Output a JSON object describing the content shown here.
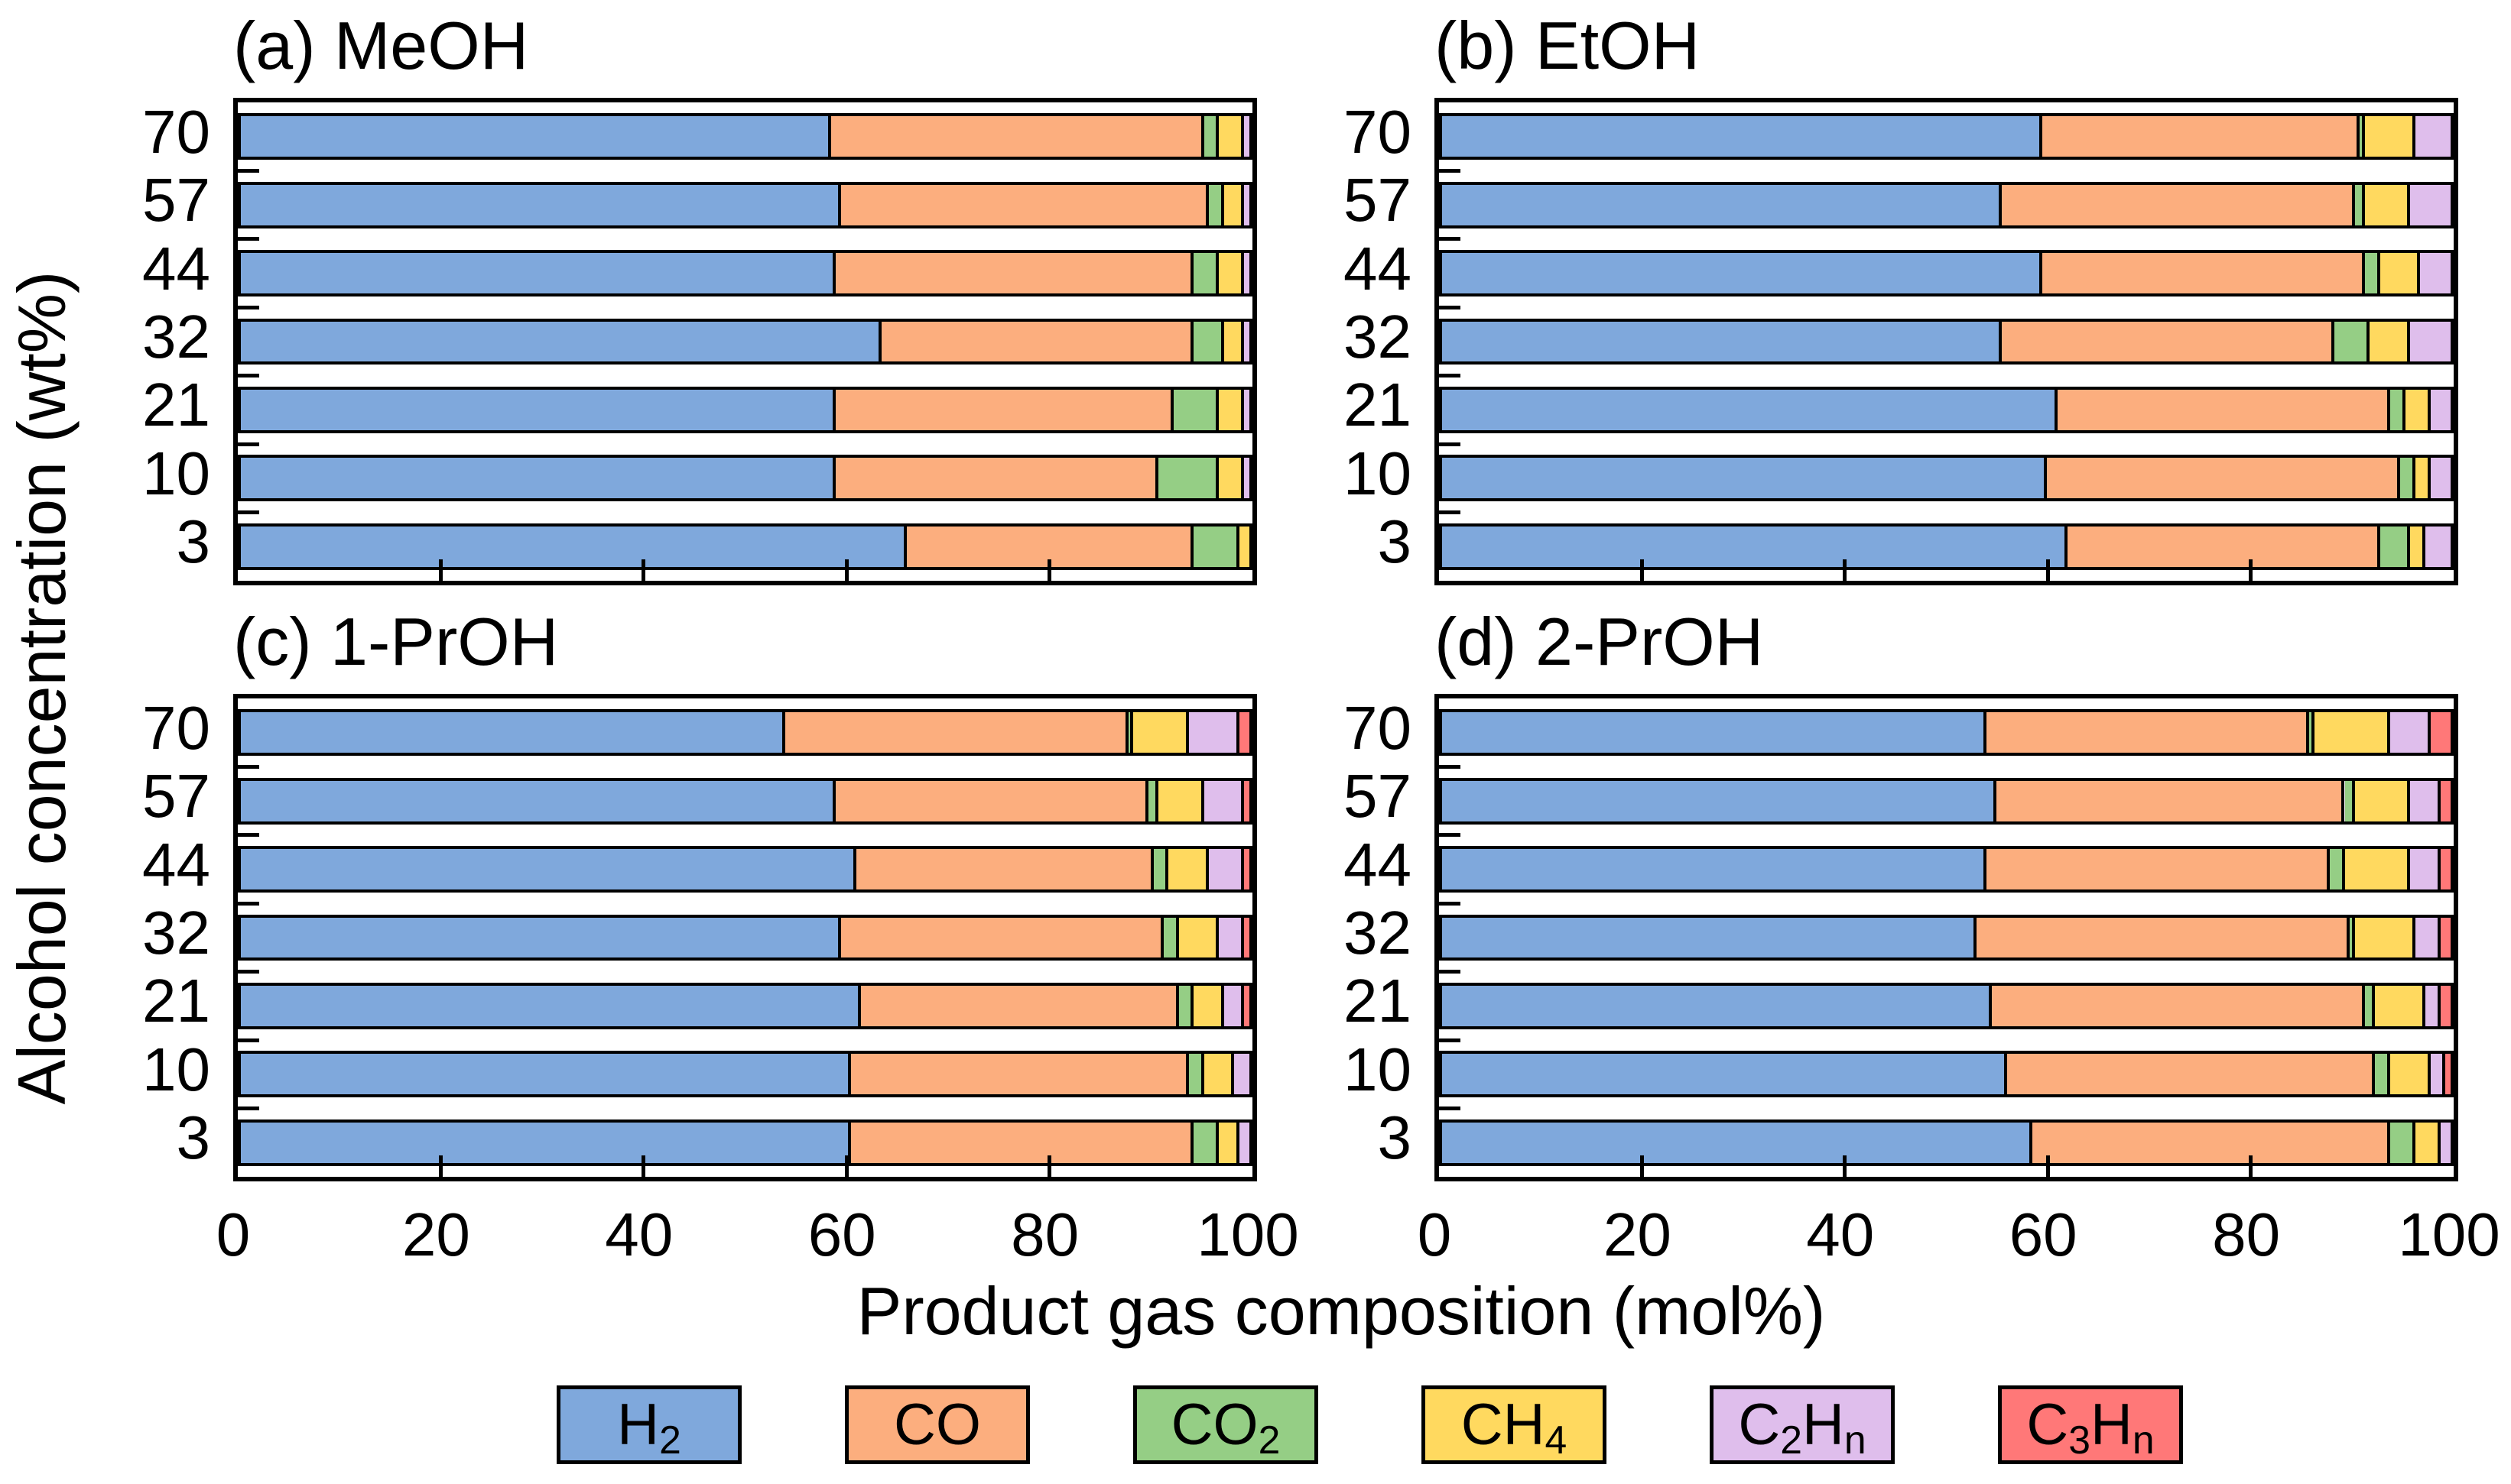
{
  "figure": {
    "ylabel": "Alcohol concentration (wt%)",
    "xlabel": "Product gas composition (mol%)",
    "background_color": "#ffffff",
    "frame_color": "#000000",
    "species": [
      {
        "name": "H2",
        "color": "#7FA8DC",
        "label_parts": [
          {
            "t": "H"
          },
          {
            "t": "2",
            "sub": true
          }
        ]
      },
      {
        "name": "CO",
        "color": "#FCAE7E",
        "label_parts": [
          {
            "t": "CO"
          }
        ]
      },
      {
        "name": "CO2",
        "color": "#95CE85",
        "label_parts": [
          {
            "t": "CO"
          },
          {
            "t": "2",
            "sub": true
          }
        ]
      },
      {
        "name": "CH4",
        "color": "#FFD95F",
        "label_parts": [
          {
            "t": "CH"
          },
          {
            "t": "4",
            "sub": true
          }
        ]
      },
      {
        "name": "C2Hn",
        "color": "#DFBEEC",
        "label_parts": [
          {
            "t": "C"
          },
          {
            "t": "2",
            "sub": true
          },
          {
            "t": "H"
          },
          {
            "t": "n",
            "sub": true
          }
        ]
      },
      {
        "name": "C3Hn",
        "color": "#FF7878",
        "label_parts": [
          {
            "t": "C"
          },
          {
            "t": "3",
            "sub": true
          },
          {
            "t": "H"
          },
          {
            "t": "n",
            "sub": true
          }
        ]
      }
    ]
  },
  "chart_data": [
    {
      "panel": "a",
      "title": "(a) MeOH",
      "type": "bar",
      "stacked": true,
      "orientation": "horizontal",
      "categories": [
        "70",
        "57",
        "44",
        "32",
        "21",
        "10",
        "3"
      ],
      "xlim": [
        0,
        100
      ],
      "xticks": [
        "0",
        "20",
        "40",
        "60",
        "80",
        "100"
      ],
      "show_x_tick_labels": false,
      "series": [
        {
          "name": "H2",
          "values": [
            58.5,
            59.5,
            59.0,
            63.5,
            59.0,
            59.0,
            66.0
          ]
        },
        {
          "name": "CO",
          "values": [
            37.0,
            36.5,
            35.5,
            31.0,
            33.5,
            32.0,
            28.5
          ]
        },
        {
          "name": "CO2",
          "values": [
            1.5,
            1.5,
            2.5,
            3.0,
            4.5,
            6.0,
            4.5
          ]
        },
        {
          "name": "CH4",
          "values": [
            2.5,
            2.0,
            2.5,
            2.0,
            2.5,
            2.5,
            1.0
          ]
        },
        {
          "name": "C2Hn",
          "values": [
            0.5,
            0.5,
            0.5,
            0.5,
            0.5,
            0.5,
            0.0
          ]
        },
        {
          "name": "C3Hn",
          "values": [
            0.0,
            0.0,
            0.0,
            0.0,
            0.0,
            0.0,
            0.0
          ]
        }
      ]
    },
    {
      "panel": "b",
      "title": "(b) EtOH",
      "type": "bar",
      "stacked": true,
      "orientation": "horizontal",
      "categories": [
        "70",
        "57",
        "44",
        "32",
        "21",
        "10",
        "3"
      ],
      "xlim": [
        0,
        100
      ],
      "xticks": [
        "0",
        "20",
        "40",
        "60",
        "80",
        "100"
      ],
      "show_x_tick_labels": false,
      "series": [
        {
          "name": "H2",
          "values": [
            59.5,
            55.5,
            59.5,
            55.5,
            61.0,
            60.0,
            62.0
          ]
        },
        {
          "name": "CO",
          "values": [
            31.5,
            35.0,
            32.0,
            33.0,
            33.0,
            35.0,
            31.0
          ]
        },
        {
          "name": "CO2",
          "values": [
            0.5,
            1.0,
            1.5,
            3.5,
            1.5,
            1.5,
            3.0
          ]
        },
        {
          "name": "CH4",
          "values": [
            5.0,
            4.5,
            4.0,
            4.0,
            2.5,
            1.5,
            1.5
          ]
        },
        {
          "name": "C2Hn",
          "values": [
            3.5,
            4.0,
            3.0,
            4.0,
            2.0,
            2.0,
            2.5
          ]
        },
        {
          "name": "C3Hn",
          "values": [
            0.0,
            0.0,
            0.0,
            0.0,
            0.0,
            0.0,
            0.0
          ]
        }
      ]
    },
    {
      "panel": "c",
      "title": "(c) 1-PrOH",
      "type": "bar",
      "stacked": true,
      "orientation": "horizontal",
      "categories": [
        "70",
        "57",
        "44",
        "32",
        "21",
        "10",
        "3"
      ],
      "xlim": [
        0,
        100
      ],
      "xticks": [
        "0",
        "20",
        "40",
        "60",
        "80",
        "100"
      ],
      "show_x_tick_labels": true,
      "series": [
        {
          "name": "H2",
          "values": [
            54.0,
            59.0,
            61.0,
            59.5,
            61.5,
            60.5,
            60.5
          ]
        },
        {
          "name": "CO",
          "values": [
            34.0,
            31.0,
            29.5,
            32.0,
            31.5,
            33.5,
            34.0
          ]
        },
        {
          "name": "CO2",
          "values": [
            0.5,
            1.0,
            1.5,
            1.5,
            1.5,
            1.5,
            2.5
          ]
        },
        {
          "name": "CH4",
          "values": [
            5.5,
            4.5,
            4.0,
            4.0,
            3.0,
            3.0,
            2.0
          ]
        },
        {
          "name": "C2Hn",
          "values": [
            5.0,
            4.0,
            3.5,
            2.5,
            2.0,
            1.5,
            1.0
          ]
        },
        {
          "name": "C3Hn",
          "values": [
            1.0,
            0.5,
            0.5,
            0.5,
            0.5,
            0.0,
            0.0
          ]
        }
      ]
    },
    {
      "panel": "d",
      "title": "(d) 2-PrOH",
      "type": "bar",
      "stacked": true,
      "orientation": "horizontal",
      "categories": [
        "70",
        "57",
        "44",
        "32",
        "21",
        "10",
        "3"
      ],
      "xlim": [
        0,
        100
      ],
      "xticks": [
        "0",
        "20",
        "40",
        "60",
        "80",
        "100"
      ],
      "show_x_tick_labels": true,
      "series": [
        {
          "name": "H2",
          "values": [
            54.0,
            55.0,
            54.0,
            53.0,
            54.5,
            56.0,
            58.5
          ]
        },
        {
          "name": "CO",
          "values": [
            32.0,
            34.5,
            34.0,
            37.0,
            37.0,
            36.5,
            35.5
          ]
        },
        {
          "name": "CO2",
          "values": [
            0.5,
            1.0,
            1.5,
            0.5,
            1.0,
            1.5,
            2.5
          ]
        },
        {
          "name": "CH4",
          "values": [
            7.5,
            5.5,
            6.5,
            6.0,
            5.0,
            4.0,
            2.5
          ]
        },
        {
          "name": "C2Hn",
          "values": [
            4.0,
            3.0,
            3.0,
            2.5,
            1.5,
            1.5,
            1.0
          ]
        },
        {
          "name": "C3Hn",
          "values": [
            2.0,
            1.0,
            1.0,
            1.0,
            1.0,
            0.5,
            0.0
          ]
        }
      ]
    }
  ]
}
